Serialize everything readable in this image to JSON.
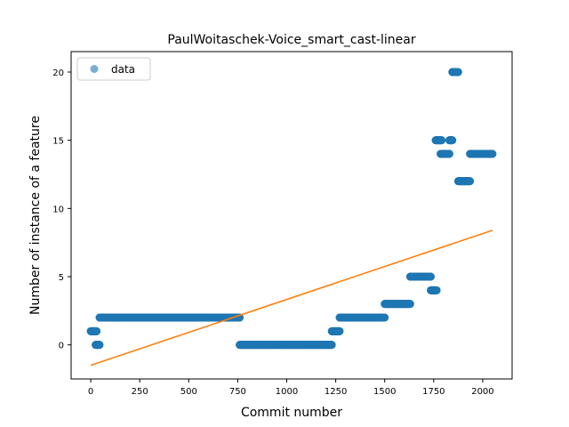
{
  "chart_data": {
    "type": "scatter",
    "title": "PaulWoitaschek-Voice_smart_cast-linear",
    "xlabel": "Commit number",
    "ylabel": "Number of instance of a feature",
    "xlim": [
      -100,
      2150
    ],
    "ylim": [
      -2.5,
      21.5
    ],
    "xticks": [
      0,
      250,
      500,
      750,
      1000,
      1250,
      1500,
      1750,
      2000
    ],
    "yticks": [
      0,
      5,
      10,
      15,
      20
    ],
    "legend": {
      "entries": [
        "data"
      ],
      "placement": "top-left"
    },
    "grid": false,
    "colors": {
      "data": "#1f77b4",
      "fit": "#ff7f0e"
    },
    "series": [
      {
        "name": "data",
        "kind": "scatter",
        "segments": [
          {
            "x_start": 0,
            "x_end": 30,
            "y": 1
          },
          {
            "x_start": 25,
            "x_end": 45,
            "y": 0
          },
          {
            "x_start": 45,
            "x_end": 760,
            "y": 2
          },
          {
            "x_start": 760,
            "x_end": 1230,
            "y": 0
          },
          {
            "x_start": 1230,
            "x_end": 1270,
            "y": 1
          },
          {
            "x_start": 1270,
            "x_end": 1500,
            "y": 2
          },
          {
            "x_start": 1500,
            "x_end": 1630,
            "y": 3
          },
          {
            "x_start": 1630,
            "x_end": 1735,
            "y": 5
          },
          {
            "x_start": 1735,
            "x_end": 1765,
            "y": 4
          },
          {
            "x_start": 1760,
            "x_end": 1790,
            "y": 15
          },
          {
            "x_start": 1785,
            "x_end": 1830,
            "y": 14
          },
          {
            "x_start": 1830,
            "x_end": 1845,
            "y": 15
          },
          {
            "x_start": 1845,
            "x_end": 1875,
            "y": 20
          },
          {
            "x_start": 1875,
            "x_end": 1935,
            "y": 12
          },
          {
            "x_start": 1935,
            "x_end": 2050,
            "y": 14
          }
        ]
      },
      {
        "kind": "line",
        "x": [
          0,
          2050
        ],
        "y": [
          -1.5,
          8.4
        ]
      }
    ]
  }
}
